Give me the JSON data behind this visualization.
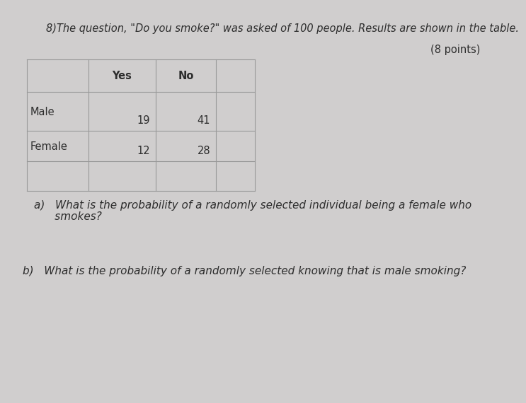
{
  "background_color": "#d0cece",
  "title_text": "8)The question, \"Do you smoke?\" was asked of 100 people. Results are shown in the table.",
  "points_text": "(8 points)",
  "col_headers": [
    "",
    "Yes",
    "No",
    ""
  ],
  "data_rows": [
    [
      "Male",
      "19",
      "41",
      ""
    ],
    [
      "Female",
      "12",
      "28",
      ""
    ],
    [
      "",
      "",
      "",
      ""
    ]
  ],
  "question_a_line1": "a)   What is the probability of a randomly selected individual being a female who",
  "question_a_line2": "      smokes?",
  "question_b": "b)   What is the probability of a randomly selected knowing that is male smoking?",
  "title_fontsize": 10.5,
  "points_fontsize": 10.5,
  "table_fontsize": 10.5,
  "question_fontsize": 11
}
